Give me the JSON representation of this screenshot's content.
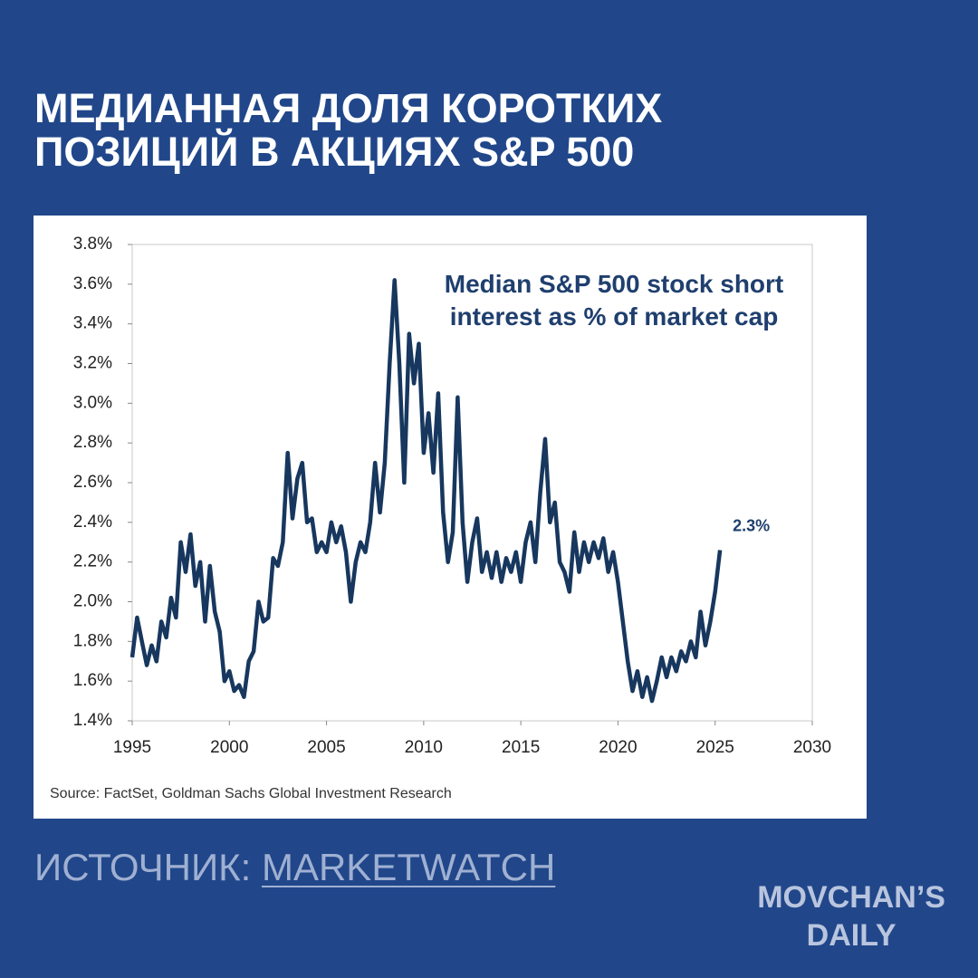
{
  "header": {
    "title_lines": [
      "МЕДИАННАЯ ДОЛЯ КОРОТКИХ",
      "ПОЗИЦИЙ В АКЦИЯХ S&P 500"
    ]
  },
  "chart_data": {
    "type": "line",
    "title": "Median S&P 500 stock short interest as % of market cap",
    "color": "#17375e",
    "x": [
      1995.0,
      1995.25,
      1995.5,
      1995.75,
      1996.0,
      1996.25,
      1996.5,
      1996.75,
      1997.0,
      1997.25,
      1997.5,
      1997.75,
      1998.0,
      1998.25,
      1998.5,
      1998.75,
      1999.0,
      1999.25,
      1999.5,
      1999.75,
      2000.0,
      2000.25,
      2000.5,
      2000.75,
      2001.0,
      2001.25,
      2001.5,
      2001.75,
      2002.0,
      2002.25,
      2002.5,
      2002.75,
      2003.0,
      2003.25,
      2003.5,
      2003.75,
      2004.0,
      2004.25,
      2004.5,
      2004.75,
      2005.0,
      2005.25,
      2005.5,
      2005.75,
      2006.0,
      2006.25,
      2006.5,
      2006.75,
      2007.0,
      2007.25,
      2007.5,
      2007.75,
      2008.0,
      2008.25,
      2008.5,
      2008.75,
      2009.0,
      2009.25,
      2009.5,
      2009.75,
      2010.0,
      2010.25,
      2010.5,
      2010.75,
      2011.0,
      2011.25,
      2011.5,
      2011.75,
      2012.0,
      2012.25,
      2012.5,
      2012.75,
      2013.0,
      2013.25,
      2013.5,
      2013.75,
      2014.0,
      2014.25,
      2014.5,
      2014.75,
      2015.0,
      2015.25,
      2015.5,
      2015.75,
      2016.0,
      2016.25,
      2016.5,
      2016.75,
      2017.0,
      2017.25,
      2017.5,
      2017.75,
      2018.0,
      2018.25,
      2018.5,
      2018.75,
      2019.0,
      2019.25,
      2019.5,
      2019.75,
      2020.0,
      2020.25,
      2020.5,
      2020.75,
      2021.0,
      2021.25,
      2021.5,
      2021.75,
      2022.0,
      2022.25,
      2022.5,
      2022.75,
      2023.0,
      2023.25,
      2023.5,
      2023.75,
      2024.0,
      2024.25,
      2024.5,
      2024.75,
      2025.0,
      2025.25
    ],
    "values": [
      1.72,
      1.92,
      1.8,
      1.68,
      1.78,
      1.7,
      1.9,
      1.82,
      2.02,
      1.92,
      2.3,
      2.15,
      2.34,
      2.08,
      2.2,
      1.9,
      2.18,
      1.95,
      1.85,
      1.6,
      1.65,
      1.55,
      1.58,
      1.52,
      1.7,
      1.75,
      2.0,
      1.9,
      1.92,
      2.22,
      2.18,
      2.3,
      2.75,
      2.42,
      2.62,
      2.7,
      2.4,
      2.42,
      2.25,
      2.3,
      2.25,
      2.4,
      2.3,
      2.38,
      2.25,
      2.0,
      2.2,
      2.3,
      2.25,
      2.4,
      2.7,
      2.45,
      2.7,
      3.2,
      3.62,
      3.2,
      2.6,
      3.35,
      3.1,
      3.3,
      2.75,
      2.95,
      2.65,
      3.05,
      2.45,
      2.2,
      2.35,
      3.03,
      2.4,
      2.1,
      2.3,
      2.42,
      2.15,
      2.25,
      2.12,
      2.25,
      2.1,
      2.22,
      2.15,
      2.25,
      2.1,
      2.3,
      2.4,
      2.2,
      2.55,
      2.82,
      2.4,
      2.5,
      2.2,
      2.15,
      2.05,
      2.35,
      2.15,
      2.3,
      2.2,
      2.3,
      2.22,
      2.32,
      2.15,
      2.25,
      2.1,
      1.9,
      1.7,
      1.55,
      1.65,
      1.52,
      1.62,
      1.5,
      1.6,
      1.72,
      1.62,
      1.72,
      1.65,
      1.75,
      1.7,
      1.8,
      1.72,
      1.95,
      1.78,
      1.9,
      2.05,
      2.26
    ],
    "end_label": "2.3%",
    "xlim": [
      1995,
      2030
    ],
    "xticks": [
      1995,
      2000,
      2005,
      2010,
      2015,
      2020,
      2025,
      2030
    ],
    "ylim": [
      1.4,
      3.8
    ],
    "yticks": [
      {
        "value": 1.4,
        "label": "1.4%"
      },
      {
        "value": 1.6,
        "label": "1.6%"
      },
      {
        "value": 1.8,
        "label": "1.8%"
      },
      {
        "value": 2.0,
        "label": "2.0%"
      },
      {
        "value": 2.2,
        "label": "2.2%"
      },
      {
        "value": 2.4,
        "label": "2.4%"
      },
      {
        "value": 2.6,
        "label": "2.6%"
      },
      {
        "value": 2.8,
        "label": "2.8%"
      },
      {
        "value": 3.0,
        "label": "3.0%"
      },
      {
        "value": 3.2,
        "label": "3.2%"
      },
      {
        "value": 3.4,
        "label": "3.4%"
      },
      {
        "value": 3.6,
        "label": "3.6%"
      },
      {
        "value": 3.8,
        "label": "3.8%"
      }
    ],
    "grid": false,
    "source": "Source: FactSet, Goldman Sachs Global Investment Research"
  },
  "footer": {
    "source_prefix": "ИСТОЧНИК:",
    "source_link": "MARKETWATCH",
    "brand_lines": [
      "MOVCHAN’S",
      "DAILY"
    ]
  }
}
